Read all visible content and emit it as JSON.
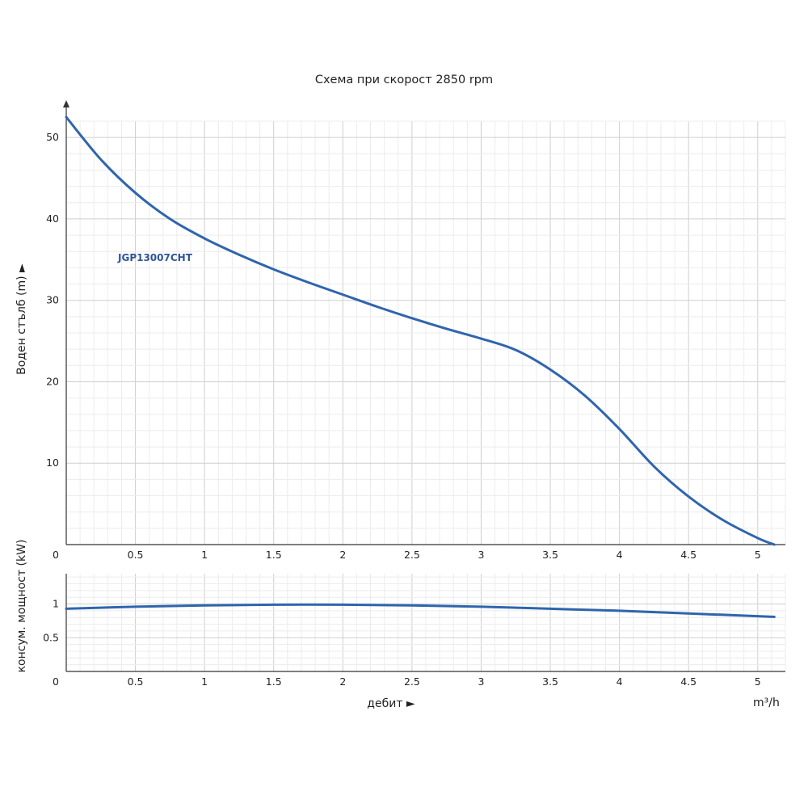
{
  "title": "Схема при скорост 2850 rpm",
  "x_axis_label": "дебит ►",
  "x_unit": "m³/h",
  "colors": {
    "curve": "#2f65ad",
    "grid_major": "#cfcfcf",
    "grid_minor": "#ececec",
    "axis": "#333333"
  },
  "chart_data": [
    {
      "type": "line",
      "ylabel": "Воден стълб (m) ►",
      "xlim": [
        0,
        5.2
      ],
      "ylim": [
        0,
        52
      ],
      "x_ticks": [
        "0",
        "0.5",
        "1",
        "1.5",
        "2",
        "2.5",
        "3",
        "3.5",
        "4",
        "4.5",
        "5"
      ],
      "y_ticks": [
        "10",
        "20",
        "30",
        "40",
        "50"
      ],
      "grid": true,
      "series": [
        {
          "name": "JGP13007CHT",
          "x": [
            0,
            0.25,
            0.5,
            0.75,
            1,
            1.25,
            1.5,
            1.75,
            2,
            2.25,
            2.5,
            2.75,
            3,
            3.25,
            3.5,
            3.75,
            4,
            4.25,
            4.5,
            4.75,
            5,
            5.12
          ],
          "y": [
            52.5,
            47.3,
            43.2,
            40.0,
            37.6,
            35.6,
            33.8,
            32.2,
            30.7,
            29.2,
            27.8,
            26.5,
            25.3,
            23.9,
            21.5,
            18.3,
            14.2,
            9.6,
            5.9,
            3.0,
            0.8,
            0
          ]
        }
      ]
    },
    {
      "type": "line",
      "ylabel": "консум. мощност (kW)",
      "xlim": [
        0,
        5.2
      ],
      "ylim": [
        0,
        1.45
      ],
      "x_ticks": [
        "0",
        "0.5",
        "1",
        "1.5",
        "2",
        "2.5",
        "3",
        "3.5",
        "4",
        "4.5",
        "5"
      ],
      "y_ticks": [
        "0.5",
        "1"
      ],
      "grid": true,
      "series": [
        {
          "x": [
            0,
            0.5,
            1,
            1.5,
            2,
            2.5,
            3,
            3.5,
            4,
            4.5,
            5,
            5.12
          ],
          "y": [
            0.93,
            0.96,
            0.98,
            0.99,
            0.99,
            0.98,
            0.96,
            0.93,
            0.9,
            0.86,
            0.82,
            0.81
          ]
        }
      ]
    }
  ]
}
